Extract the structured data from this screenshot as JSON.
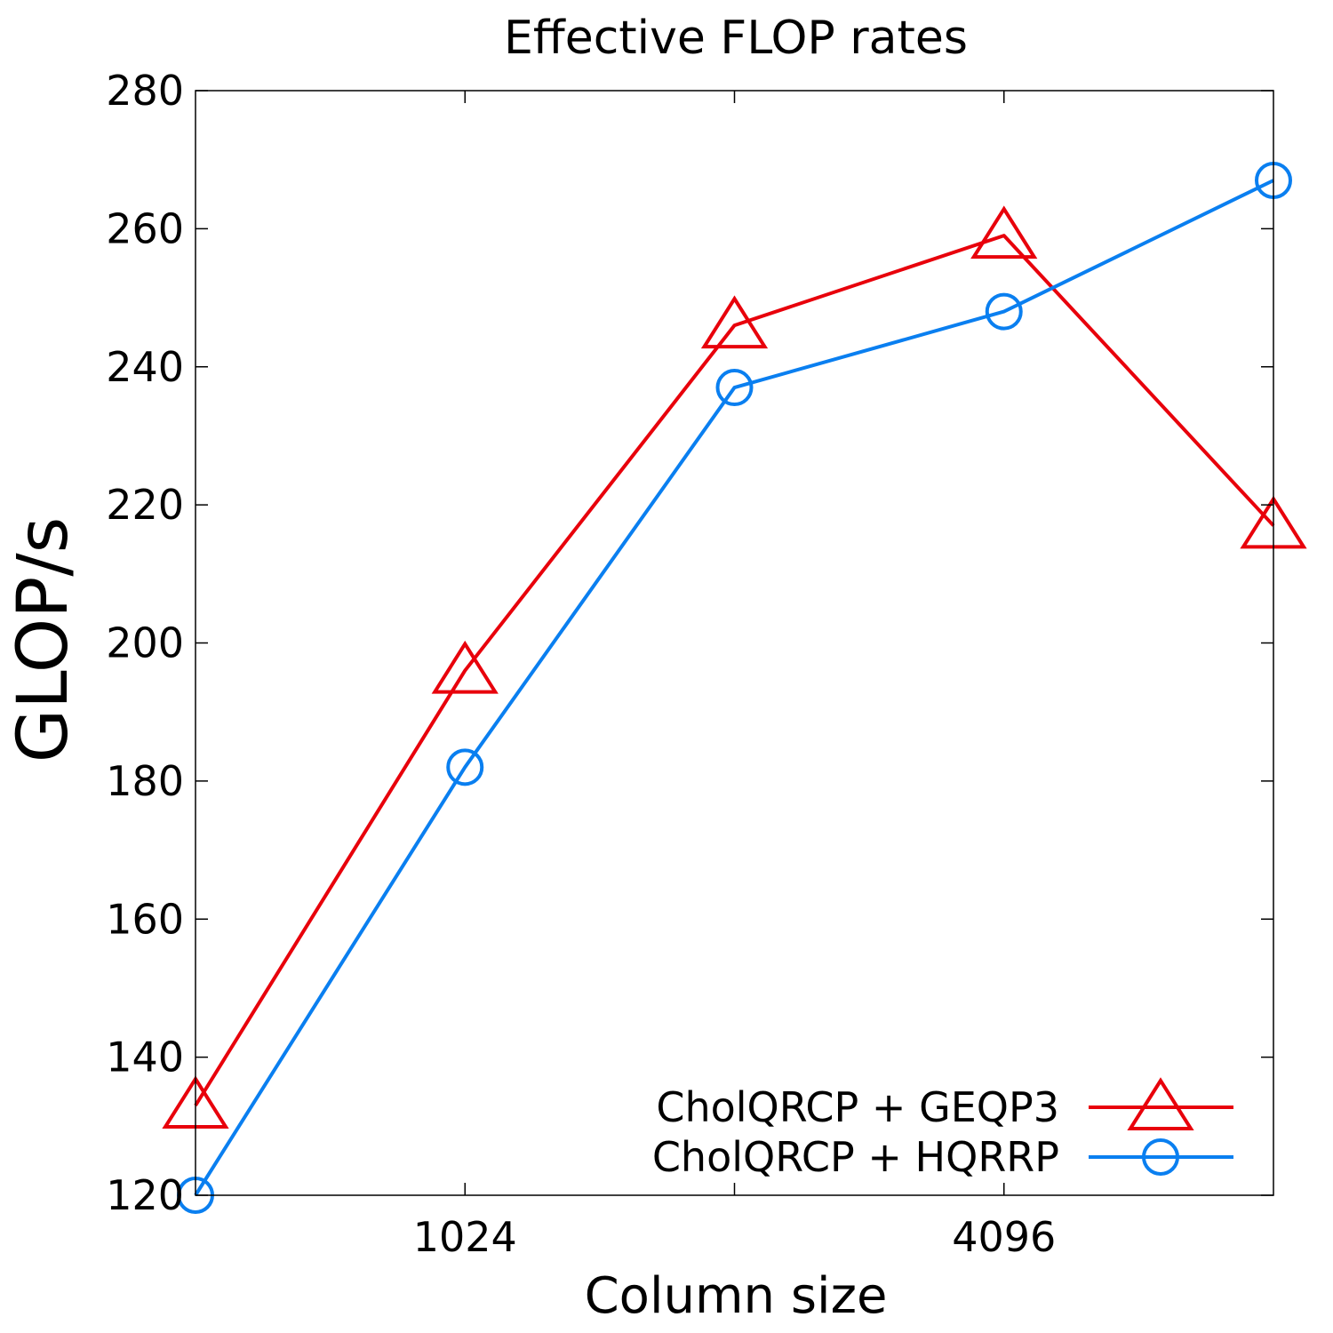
{
  "chart_data": {
    "type": "line",
    "title": "Effective FLOP rates",
    "xlabel": "Column size",
    "ylabel": "GLOP/s",
    "x_scale": "log2",
    "x": [
      512,
      1024,
      2048,
      4096,
      8192
    ],
    "xticks": [
      {
        "value": 1024,
        "label": "1024"
      },
      {
        "value": 2048,
        "label": ""
      },
      {
        "value": 4096,
        "label": "4096"
      }
    ],
    "xlim": [
      512,
      8192
    ],
    "ylim": [
      120,
      280
    ],
    "yticks": [
      120,
      140,
      160,
      180,
      200,
      220,
      240,
      260,
      280
    ],
    "grid": false,
    "legend_position": "bottom-right",
    "series": [
      {
        "name": "CholQRCP + GEQP3",
        "color": "#e8000b",
        "marker": "triangle",
        "values": [
          133,
          196,
          246,
          259,
          217
        ]
      },
      {
        "name": "CholQRCP + HQRRP",
        "color": "#0a7ff0",
        "marker": "circle",
        "values": [
          120,
          182,
          237,
          248,
          267
        ]
      }
    ]
  }
}
